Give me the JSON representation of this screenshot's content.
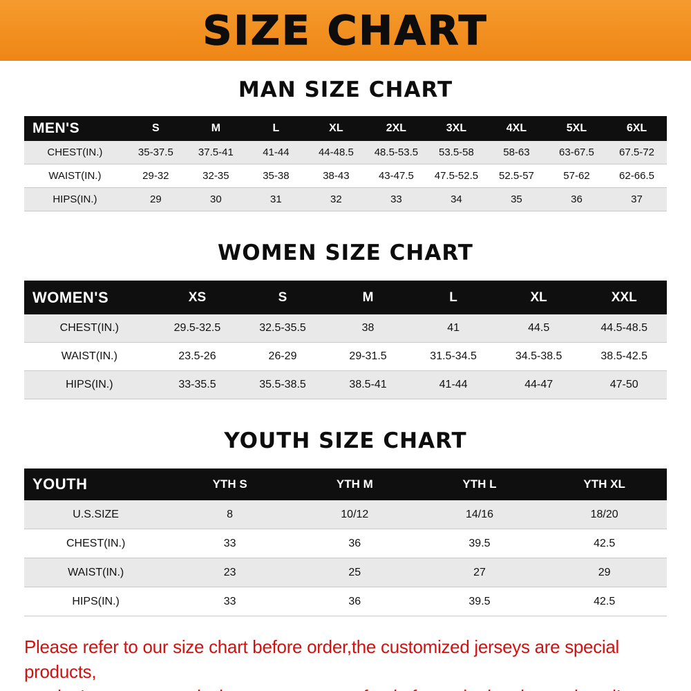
{
  "banner": {
    "title": "SIZE CHART",
    "bg_color": "#f08c1c",
    "text_color": "#0d0d0d"
  },
  "sections": {
    "men": {
      "heading": "MAN SIZE CHART",
      "table": {
        "header": [
          "MEN'S",
          "S",
          "M",
          "L",
          "XL",
          "2XL",
          "3XL",
          "4XL",
          "5XL",
          "6XL"
        ],
        "rows": [
          [
            "CHEST(IN.)",
            "35-37.5",
            "37.5-41",
            "41-44",
            "44-48.5",
            "48.5-53.5",
            "53.5-58",
            "58-63",
            "63-67.5",
            "67.5-72"
          ],
          [
            "WAIST(IN.)",
            "29-32",
            "32-35",
            "35-38",
            "38-43",
            "43-47.5",
            "47.5-52.5",
            "52.5-57",
            "57-62",
            "62-66.5"
          ],
          [
            "HIPS(IN.)",
            "29",
            "30",
            "31",
            "32",
            "33",
            "34",
            "35",
            "36",
            "37"
          ]
        ]
      }
    },
    "women": {
      "heading": "WOMEN SIZE CHART",
      "table": {
        "header": [
          "WOMEN'S",
          "XS",
          "S",
          "M",
          "L",
          "XL",
          "XXL"
        ],
        "rows": [
          [
            "CHEST(IN.)",
            "29.5-32.5",
            "32.5-35.5",
            "38",
            "41",
            "44.5",
            "44.5-48.5"
          ],
          [
            "WAIST(IN.)",
            "23.5-26",
            "26-29",
            "29-31.5",
            "31.5-34.5",
            "34.5-38.5",
            "38.5-42.5"
          ],
          [
            "HIPS(IN.)",
            "33-35.5",
            "35.5-38.5",
            "38.5-41",
            "41-44",
            "44-47",
            "47-50"
          ]
        ]
      }
    },
    "youth": {
      "heading": "YOUTH SIZE CHART",
      "table": {
        "header": [
          "YOUTH",
          "YTH S",
          "YTH M",
          "YTH L",
          "YTH XL"
        ],
        "rows": [
          [
            "U.S.SIZE",
            "8",
            "10/12",
            "14/16",
            "18/20"
          ],
          [
            "CHEST(IN.)",
            "33",
            "36",
            "39.5",
            "42.5"
          ],
          [
            "WAIST(IN.)",
            "23",
            "25",
            "27",
            "29"
          ],
          [
            "HIPS(IN.)",
            "33",
            "36",
            "39.5",
            "42.5"
          ]
        ]
      }
    }
  },
  "footer": {
    "line1": "Please refer to our size chart before order,the customized jerseys are special products,",
    "line2": "we don't accept cancel, change, teturn or refund after order has been placed!",
    "text_color": "#cf1212"
  }
}
